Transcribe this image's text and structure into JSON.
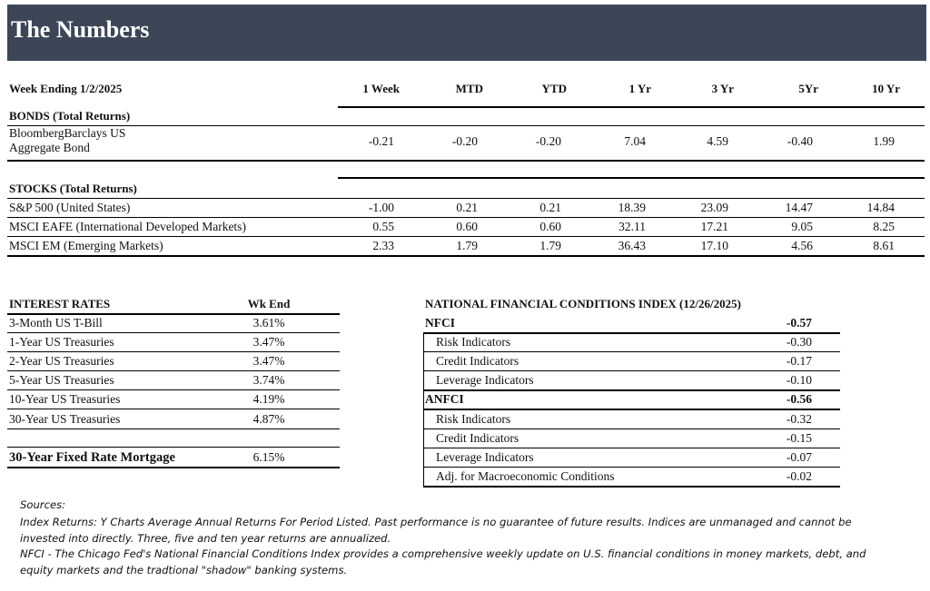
{
  "header": {
    "title": "The Numbers"
  },
  "returns": {
    "period_label": "Week Ending 1/2/2025",
    "columns": [
      "1 Week",
      "MTD",
      "YTD",
      "1 Yr",
      "3 Yr",
      "5Yr",
      "10 Yr"
    ],
    "sections": [
      {
        "title": "BONDS (Total Returns)",
        "rows": [
          {
            "label": "BloombergBarclays US Aggregate Bond",
            "values": [
              "-0.21",
              "-0.20",
              "-0.20",
              "7.04",
              "4.59",
              "-0.40",
              "1.99"
            ]
          }
        ]
      },
      {
        "title": "STOCKS (Total Returns)",
        "rows": [
          {
            "label": "S&P 500 (United States)",
            "values": [
              "-1.00",
              "0.21",
              "0.21",
              "18.39",
              "23.09",
              "14.47",
              "14.84"
            ]
          },
          {
            "label": "MSCI EAFE (International Developed Markets)",
            "values": [
              "0.55",
              "0.60",
              "0.60",
              "32.11",
              "17.21",
              "9.05",
              "8.25"
            ]
          },
          {
            "label": "MSCI EM (Emerging Markets)",
            "values": [
              "2.33",
              "1.79",
              "1.79",
              "36.43",
              "17.10",
              "4.56",
              "8.61"
            ]
          }
        ]
      }
    ]
  },
  "interest_rates": {
    "title": "INTEREST RATES",
    "column": "Wk End",
    "rows": [
      {
        "label": "3-Month US T-Bill",
        "value": "3.61%"
      },
      {
        "label": "1-Year US Treasuries",
        "value": "3.47%"
      },
      {
        "label": "2-Year US Treasuries",
        "value": "3.47%"
      },
      {
        "label": "5-Year US Treasuries",
        "value": "3.74%"
      },
      {
        "label": "10-Year US Treasuries",
        "value": "4.19%"
      },
      {
        "label": "30-Year US Treasuries",
        "value": "4.87%"
      }
    ],
    "mortgage": {
      "label": "30-Year Fixed Rate Mortgage",
      "value": "6.15%"
    }
  },
  "nfci": {
    "title": "NATIONAL FINANCIAL CONDITIONS INDEX (12/26/2025)",
    "groups": [
      {
        "label": "NFCI",
        "value": "-0.57",
        "rows": [
          {
            "label": "Risk Indicators",
            "value": "-0.30"
          },
          {
            "label": "Credit Indicators",
            "value": "-0.17"
          },
          {
            "label": "Leverage Indicators",
            "value": "-0.10"
          }
        ]
      },
      {
        "label": "ANFCI",
        "value": "-0.56",
        "rows": [
          {
            "label": "Risk Indicators",
            "value": "-0.32"
          },
          {
            "label": "Credit Indicators",
            "value": "-0.15"
          },
          {
            "label": "Leverage Indicators",
            "value": "-0.07"
          },
          {
            "label": "Adj. for Macroeconomic Conditions",
            "value": "-0.02"
          }
        ]
      }
    ]
  },
  "sources": {
    "heading": "Sources:",
    "lines": [
      "Index Returns:  Y Charts Average Annual Returns For Period Listed.  Past performance is no guarantee of future results.  Indices are unmanaged and cannot be",
      "invested into directly.  Three, five and ten year returns are annualized.",
      "NFCI - The Chicago Fed's National Financial Conditions Index provides a comprehensive weekly update on U.S. financial conditions in money markets, debt, and",
      "equity markets and the tradtional \"shadow\" banking systems."
    ]
  }
}
